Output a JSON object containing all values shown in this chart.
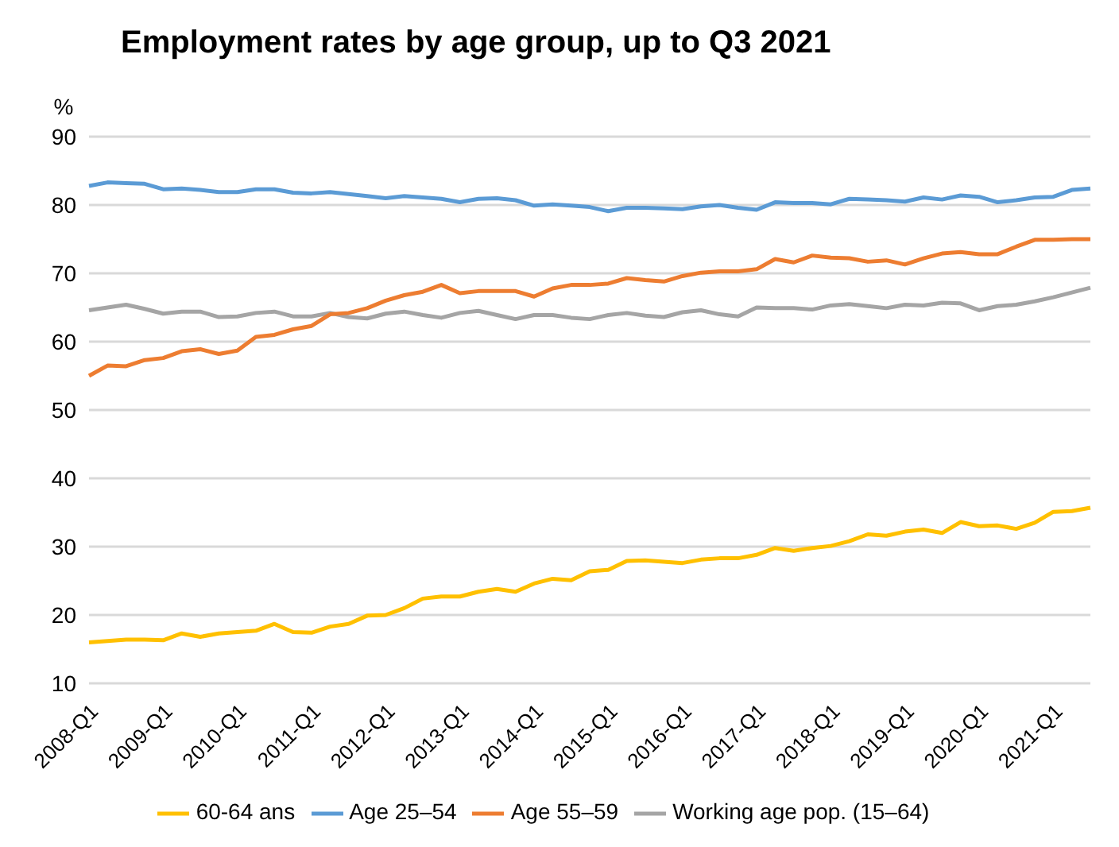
{
  "chart_data": {
    "type": "line",
    "title": "Employment rates by age group, up to Q3 2021",
    "ylabel": "%",
    "categories": [
      "2008-Q1",
      null,
      null,
      null,
      "2009-Q1",
      null,
      null,
      null,
      "2010-Q1",
      null,
      null,
      null,
      "2011-Q1",
      null,
      null,
      null,
      "2012-Q1",
      null,
      null,
      null,
      "2013-Q1",
      null,
      null,
      null,
      "2014-Q1",
      null,
      null,
      null,
      "2015-Q1",
      null,
      null,
      null,
      "2016-Q1",
      null,
      null,
      null,
      "2017-Q1",
      null,
      null,
      null,
      "2018-Q1",
      null,
      null,
      null,
      "2019-Q1",
      null,
      null,
      null,
      "2020-Q1",
      null,
      null,
      null,
      "2021-Q1",
      null,
      null
    ],
    "series": [
      {
        "name": "Working age pop. (15–64)",
        "color": "#a5a5a5",
        "values": [
          64.6,
          65.0,
          65.4,
          64.8,
          64.1,
          64.4,
          64.4,
          63.6,
          63.7,
          64.2,
          64.4,
          63.7,
          63.7,
          64.2,
          63.6,
          63.4,
          64.1,
          64.4,
          63.9,
          63.5,
          64.2,
          64.5,
          63.9,
          63.3,
          63.9,
          63.9,
          63.5,
          63.3,
          63.9,
          64.2,
          63.8,
          63.6,
          64.3,
          64.6,
          64.0,
          63.7,
          65.0,
          64.9,
          64.9,
          64.7,
          65.3,
          65.5,
          65.2,
          64.9,
          65.4,
          65.3,
          65.7,
          65.6,
          64.6,
          65.2,
          65.4,
          65.9,
          66.5,
          67.2,
          67.9
        ]
      },
      {
        "name": "Age 25–54",
        "color": "#5b9bd5",
        "values": [
          82.8,
          83.3,
          83.2,
          83.1,
          82.3,
          82.4,
          82.2,
          81.9,
          81.9,
          82.3,
          82.3,
          81.8,
          81.7,
          81.9,
          81.6,
          81.3,
          81.0,
          81.3,
          81.1,
          80.9,
          80.4,
          80.9,
          81.0,
          80.7,
          79.9,
          80.1,
          79.9,
          79.7,
          79.1,
          79.6,
          79.6,
          79.5,
          79.4,
          79.8,
          80.0,
          79.6,
          79.3,
          80.4,
          80.3,
          80.3,
          80.1,
          80.9,
          80.8,
          80.7,
          80.5,
          81.1,
          80.8,
          81.4,
          81.2,
          80.4,
          80.7,
          81.1,
          81.2,
          82.2,
          82.4
        ]
      },
      {
        "name": "Age 55–59",
        "color": "#ed7d31",
        "values": [
          55.0,
          56.5,
          56.4,
          57.3,
          57.6,
          58.6,
          58.9,
          58.2,
          58.7,
          60.7,
          61.0,
          61.8,
          62.3,
          64.0,
          64.2,
          64.9,
          66.0,
          66.8,
          67.3,
          68.3,
          67.1,
          67.4,
          67.4,
          67.4,
          66.6,
          67.8,
          68.3,
          68.3,
          68.5,
          69.3,
          69.0,
          68.8,
          69.6,
          70.1,
          70.3,
          70.3,
          70.6,
          72.1,
          71.6,
          72.6,
          72.3,
          72.2,
          71.7,
          71.9,
          71.3,
          72.2,
          72.9,
          73.1,
          72.8,
          72.8,
          73.9,
          74.9,
          74.9,
          75.0,
          75.0
        ]
      },
      {
        "name": "60-64 ans",
        "color": "#ffc000",
        "values": [
          16.0,
          16.2,
          16.4,
          16.4,
          16.3,
          17.3,
          16.8,
          17.3,
          17.5,
          17.7,
          18.7,
          17.5,
          17.4,
          18.3,
          18.7,
          19.9,
          20.0,
          21.0,
          22.4,
          22.7,
          22.7,
          23.4,
          23.8,
          23.4,
          24.6,
          25.3,
          25.1,
          26.4,
          26.6,
          27.9,
          28.0,
          27.8,
          27.6,
          28.1,
          28.3,
          28.3,
          28.8,
          29.8,
          29.4,
          29.8,
          30.1,
          30.8,
          31.8,
          31.6,
          32.2,
          32.5,
          32.0,
          33.6,
          33.0,
          33.1,
          32.6,
          33.5,
          35.1,
          35.2,
          35.7
        ]
      }
    ],
    "ylim": [
      10,
      90
    ],
    "yticks": [
      10,
      20,
      30,
      40,
      50,
      60,
      70,
      80,
      90
    ],
    "grid": "y",
    "legend": "bottom",
    "marker": "none",
    "line_style": "solid"
  }
}
